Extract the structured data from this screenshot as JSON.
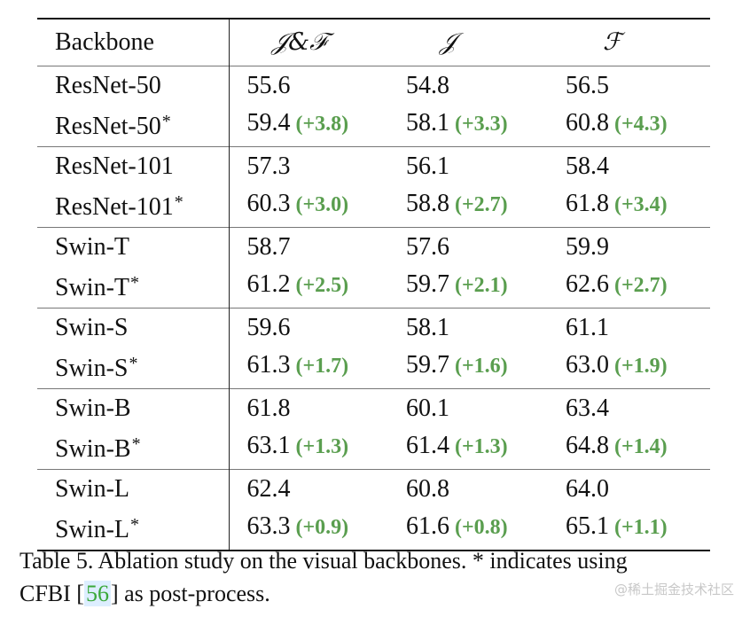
{
  "table": {
    "headers": [
      "Backbone",
      "𝒥&ℱ",
      "𝒥",
      "ℱ"
    ],
    "groups": [
      {
        "rows": [
          {
            "name": "ResNet-50",
            "star": "",
            "jf": "55.6",
            "jf_gain": "",
            "j": "54.8",
            "j_gain": "",
            "f": "56.5",
            "f_gain": ""
          },
          {
            "name": "ResNet-50",
            "star": "*",
            "jf": "59.4",
            "jf_gain": "(+3.8)",
            "j": "58.1",
            "j_gain": "(+3.3)",
            "f": "60.8",
            "f_gain": "(+4.3)"
          }
        ]
      },
      {
        "rows": [
          {
            "name": "ResNet-101",
            "star": "",
            "jf": "57.3",
            "jf_gain": "",
            "j": "56.1",
            "j_gain": "",
            "f": "58.4",
            "f_gain": ""
          },
          {
            "name": "ResNet-101",
            "star": "*",
            "jf": "60.3",
            "jf_gain": "(+3.0)",
            "j": "58.8",
            "j_gain": "(+2.7)",
            "f": "61.8",
            "f_gain": "(+3.4)"
          }
        ]
      },
      {
        "rows": [
          {
            "name": "Swin-T",
            "star": "",
            "jf": "58.7",
            "jf_gain": "",
            "j": "57.6",
            "j_gain": "",
            "f": "59.9",
            "f_gain": ""
          },
          {
            "name": "Swin-T",
            "star": "*",
            "jf": "61.2",
            "jf_gain": "(+2.5)",
            "j": "59.7",
            "j_gain": "(+2.1)",
            "f": "62.6",
            "f_gain": "(+2.7)"
          }
        ]
      },
      {
        "rows": [
          {
            "name": "Swin-S",
            "star": "",
            "jf": "59.6",
            "jf_gain": "",
            "j": "58.1",
            "j_gain": "",
            "f": "61.1",
            "f_gain": ""
          },
          {
            "name": "Swin-S",
            "star": "*",
            "jf": "61.3",
            "jf_gain": "(+1.7)",
            "j": "59.7",
            "j_gain": "(+1.6)",
            "f": "63.0",
            "f_gain": "(+1.9)"
          }
        ]
      },
      {
        "rows": [
          {
            "name": "Swin-B",
            "star": "",
            "jf": "61.8",
            "jf_gain": "",
            "j": "60.1",
            "j_gain": "",
            "f": "63.4",
            "f_gain": ""
          },
          {
            "name": "Swin-B",
            "star": "*",
            "jf": "63.1",
            "jf_gain": "(+1.3)",
            "j": "61.4",
            "j_gain": "(+1.3)",
            "f": "64.8",
            "f_gain": "(+1.4)"
          }
        ]
      },
      {
        "rows": [
          {
            "name": "Swin-L",
            "star": "",
            "jf": "62.4",
            "jf_gain": "",
            "j": "60.8",
            "j_gain": "",
            "f": "64.0",
            "f_gain": ""
          },
          {
            "name": "Swin-L",
            "star": "*",
            "jf": "63.3",
            "jf_gain": "(+0.9)",
            "j": "61.6",
            "j_gain": "(+0.8)",
            "f": "65.1",
            "f_gain": "(+1.1)"
          }
        ]
      }
    ]
  },
  "caption": {
    "line1": "Table 5. Ablation study on the visual backbones. * indicates using",
    "line2_prefix": "CFBI  [",
    "citation": "56",
    "line2_suffix": "] as post-process."
  },
  "watermark": "@稀土掘金技术社区",
  "colors": {
    "gain": "#5a9e4f",
    "citation": "#3aa83a"
  }
}
